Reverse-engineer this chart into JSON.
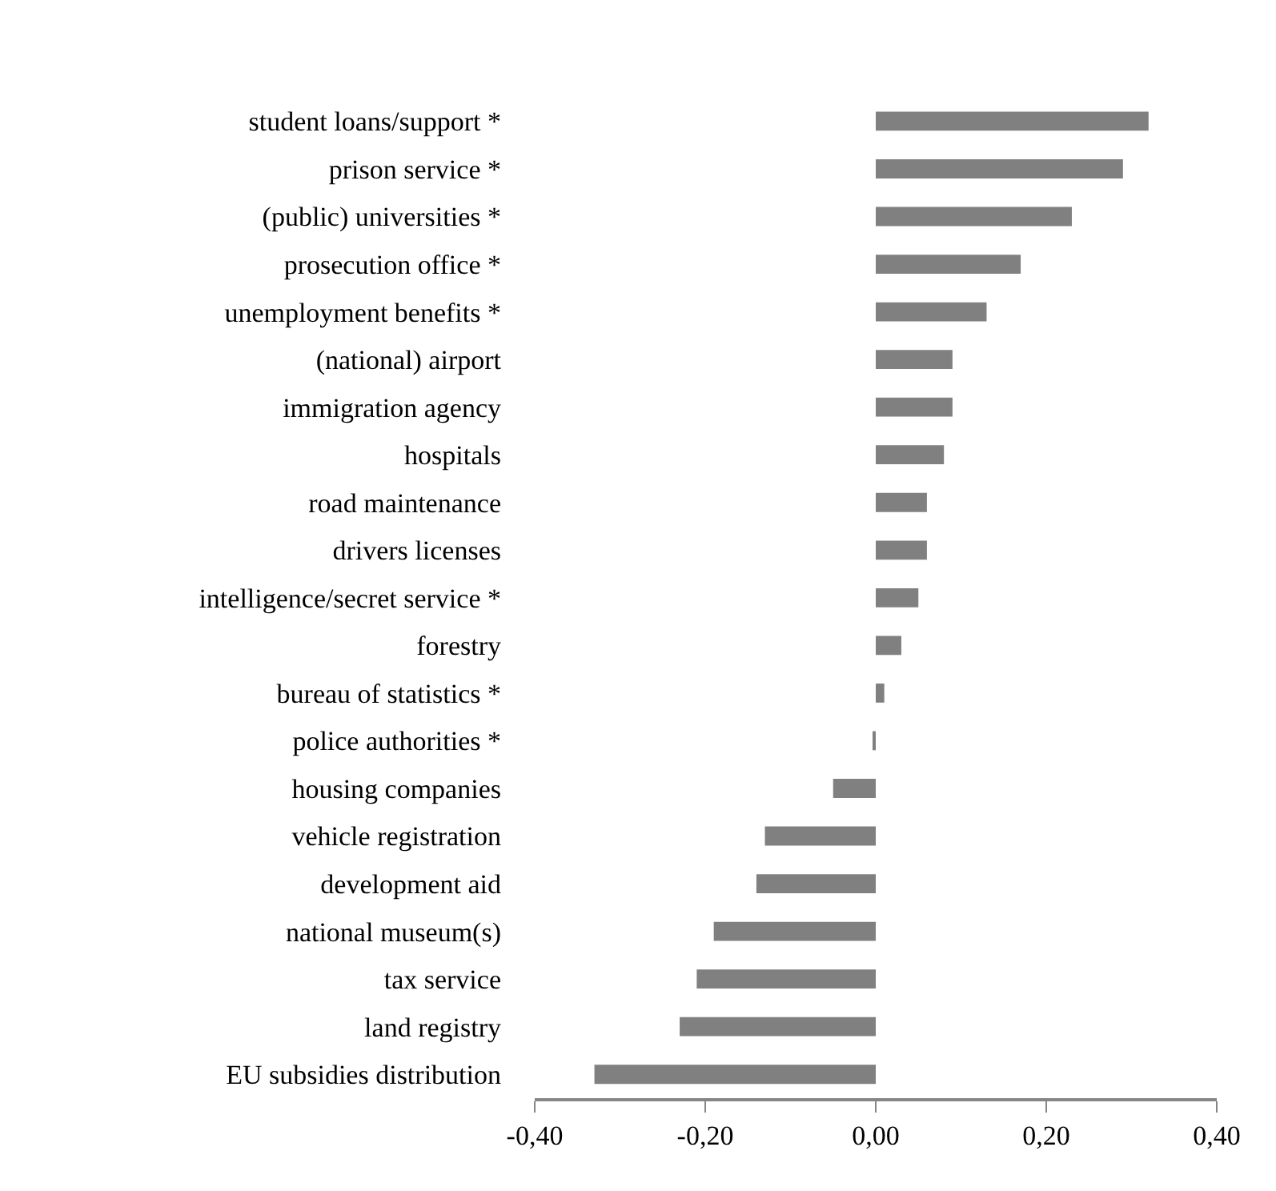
{
  "chart_data": {
    "type": "bar",
    "orientation": "horizontal",
    "categories": [
      "student loans/support *",
      "prison service *",
      "(public) universities *",
      "prosecution office *",
      "unemployment benefits *",
      "(national) airport",
      "immigration agency",
      "hospitals",
      "road maintenance",
      "drivers licenses",
      "intelligence/secret service *",
      "forestry",
      "bureau of statistics *",
      "police authorities *",
      "housing companies",
      "vehicle registration",
      "development aid",
      "national museum(s)",
      "tax service",
      "land registry",
      "EU subsidies distribution"
    ],
    "values": [
      0.32,
      0.29,
      0.23,
      0.17,
      0.13,
      0.09,
      0.09,
      0.08,
      0.06,
      0.06,
      0.05,
      0.03,
      0.01,
      -0.002,
      -0.05,
      -0.13,
      -0.14,
      -0.19,
      -0.21,
      -0.23,
      -0.33
    ],
    "color": "#808080",
    "xlim": [
      -0.4,
      0.4
    ],
    "xticks": [
      {
        "value": -0.4,
        "label": "-0,40"
      },
      {
        "value": -0.2,
        "label": "-0,20"
      },
      {
        "value": 0,
        "label": "0,00"
      },
      {
        "value": 0.2,
        "label": "0,20"
      },
      {
        "value": 0.4,
        "label": "0,40"
      }
    ],
    "legend": false
  }
}
